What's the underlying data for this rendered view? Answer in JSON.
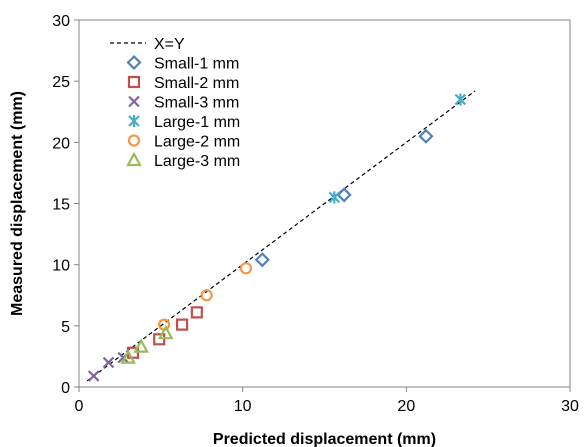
{
  "chart_data": {
    "type": "scatter",
    "title": "",
    "xlabel": "Predicted displacement (mm)",
    "ylabel": "Measured displacement (mm)",
    "xlim": [
      0,
      30
    ],
    "ylim": [
      0,
      30
    ],
    "xticks": [
      "0",
      "10",
      "20",
      "30"
    ],
    "yticks": [
      "0",
      "5",
      "10",
      "15",
      "20",
      "25",
      "30"
    ],
    "grid": false,
    "legend_position": "top-left",
    "reference_line": {
      "name": "X=Y",
      "style": "dashed",
      "color": "#000000",
      "x": [
        0.5,
        24.2
      ],
      "y": [
        0.5,
        24.2
      ]
    },
    "series": [
      {
        "name": "Small-1 mm",
        "marker": "diamond",
        "color": "#4F81BD",
        "points": [
          [
            11.2,
            10.4
          ],
          [
            16.2,
            15.7
          ],
          [
            21.2,
            20.5
          ]
        ]
      },
      {
        "name": "Small-2 mm",
        "marker": "square",
        "color": "#C0504D",
        "points": [
          [
            3.3,
            2.8
          ],
          [
            4.9,
            3.9
          ],
          [
            6.3,
            5.1
          ],
          [
            7.2,
            6.1
          ]
        ]
      },
      {
        "name": "Small-3 mm",
        "marker": "x",
        "color": "#8064A2",
        "points": [
          [
            0.9,
            0.9
          ],
          [
            1.8,
            2.0
          ],
          [
            2.7,
            2.4
          ]
        ]
      },
      {
        "name": "Large-1 mm",
        "marker": "asterisk",
        "color": "#4BACC6",
        "points": [
          [
            15.6,
            15.5
          ],
          [
            23.3,
            23.5
          ]
        ]
      },
      {
        "name": "Large-2 mm",
        "marker": "circle",
        "color": "#F79646",
        "points": [
          [
            5.2,
            5.1
          ],
          [
            7.8,
            7.5
          ],
          [
            10.2,
            9.7
          ]
        ]
      },
      {
        "name": "Large-3 mm",
        "marker": "triangle",
        "color": "#9BBB59",
        "points": [
          [
            3.0,
            2.4
          ],
          [
            3.8,
            3.3
          ],
          [
            5.3,
            4.4
          ]
        ]
      }
    ]
  }
}
